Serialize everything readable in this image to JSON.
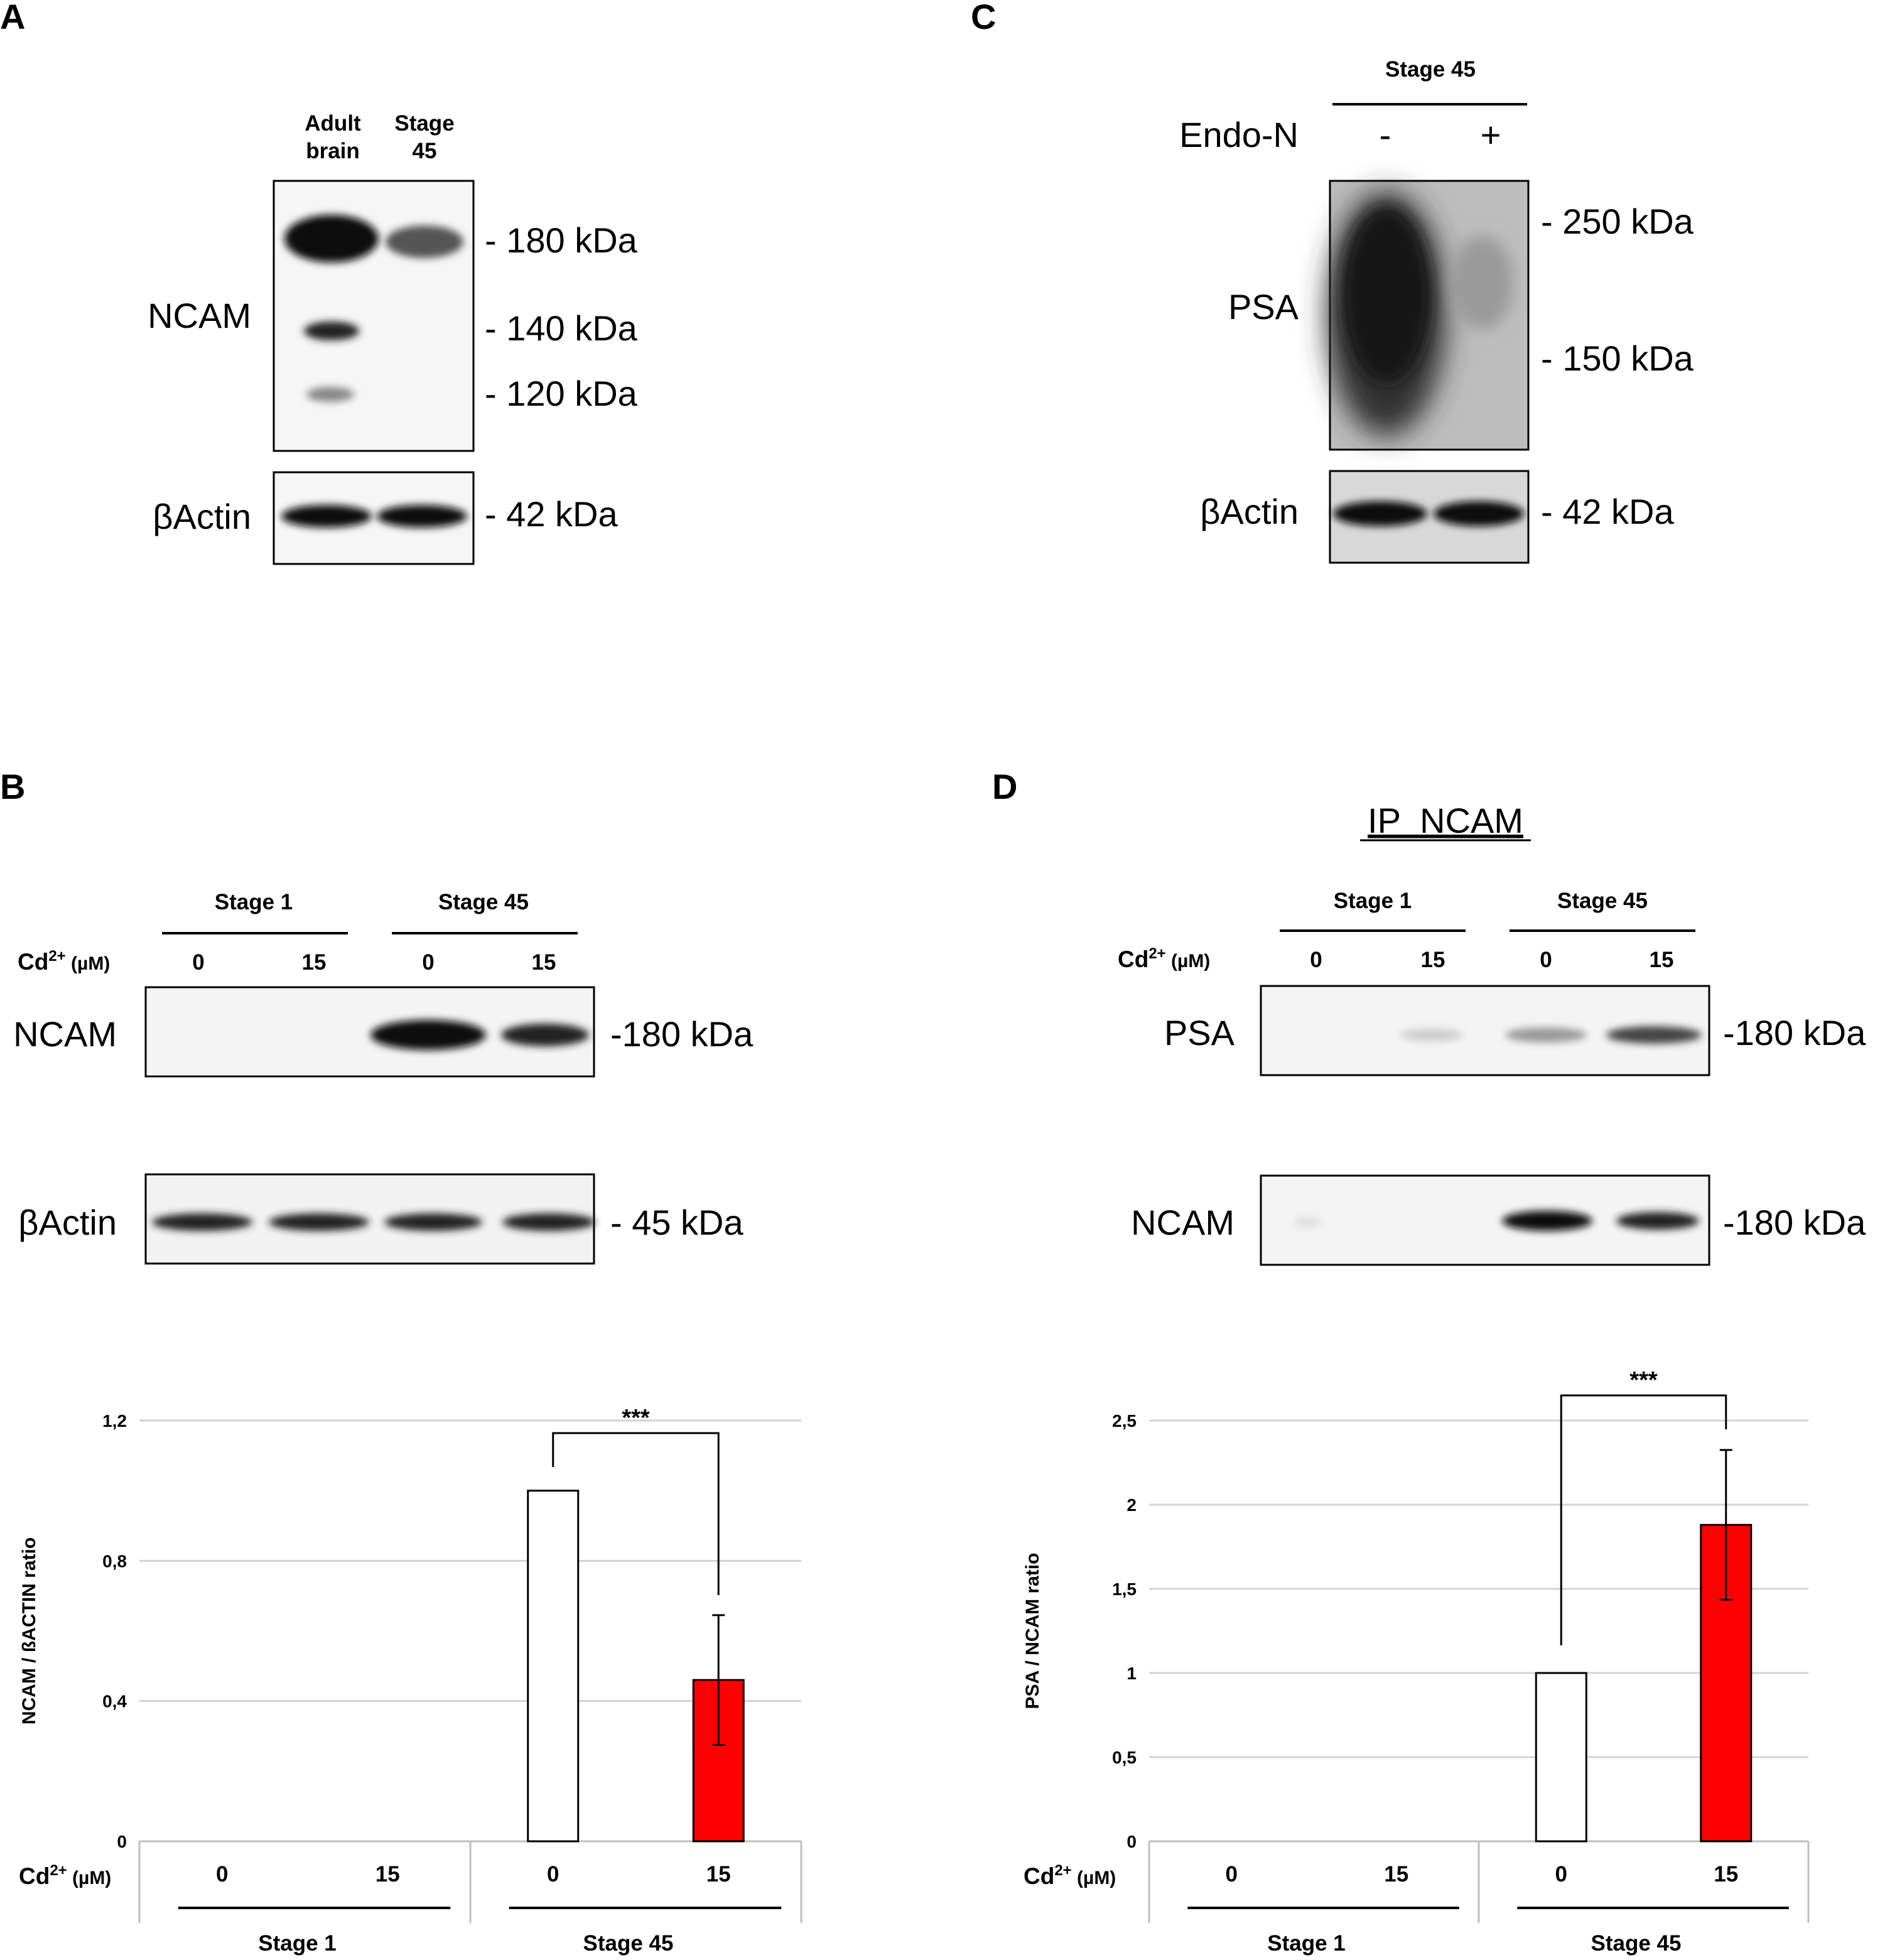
{
  "panels": {
    "A": {
      "letter": "A",
      "lanes": [
        {
          "line1": "Adult",
          "line2": "brain"
        },
        {
          "line1": "Stage",
          "line2": "45"
        }
      ],
      "rows": {
        "ncam": "NCAM",
        "actin": "βActin"
      },
      "markers": [
        "- 180 kDa",
        "- 140 kDa",
        "- 120 kDa"
      ],
      "actin_marker": "- 42 kDa"
    },
    "C": {
      "letter": "C",
      "group": "Stage 45",
      "treatment": "Endo-N",
      "signs": [
        "-",
        "+"
      ],
      "rows": {
        "psa": "PSA",
        "actin": "βActin"
      },
      "markers": [
        "- 250 kDa",
        "- 150 kDa"
      ],
      "actin_marker": "- 42 kDa"
    },
    "B": {
      "letter": "B",
      "groups": [
        "Stage 1",
        "Stage 45"
      ],
      "cd_main": "Cd",
      "cd_sup": "2+",
      "cd_unit": " (µM)",
      "doses": [
        "0",
        "15",
        "0",
        "15"
      ],
      "rows": {
        "ncam": "NCAM",
        "actin": "βActin"
      },
      "ncam_marker": "-180 kDa",
      "actin_marker": "- 45 kDa"
    },
    "D": {
      "letter": "D",
      "title": "IP  NCAM",
      "groups": [
        "Stage 1",
        "Stage 45"
      ],
      "cd_main": "Cd",
      "cd_sup": "2+",
      "cd_unit": " (µM)",
      "doses": [
        "0",
        "15",
        "0",
        "15"
      ],
      "rows": {
        "psa": "PSA",
        "ncam": "NCAM"
      },
      "psa_marker": "-180 kDa",
      "ncam_marker": "-180 kDa"
    }
  },
  "chart_data": [
    {
      "type": "bar",
      "panel": "B",
      "ylabel": "NCAM / ßACTIN ratio",
      "ylim": [
        0,
        1.2
      ],
      "yticks": [
        "0",
        "0,4",
        "0,8",
        "1,2"
      ],
      "ytick_values": [
        0,
        0.4,
        0.8,
        1.2
      ],
      "grid": true,
      "categories": [
        "0",
        "15",
        "0",
        "15"
      ],
      "groups": [
        "Stage 1",
        "Stage 45"
      ],
      "x_prefix_main": "Cd",
      "x_prefix_sup": "2+",
      "x_prefix_unit": " (µM)",
      "values": [
        0,
        0,
        1.0,
        0.46
      ],
      "errors": [
        null,
        null,
        null,
        0.185
      ],
      "colors": [
        "#ffffff",
        "#ffffff",
        "#ffffff",
        "#ff0000"
      ],
      "significance": {
        "from": 2,
        "to": 3,
        "label": "***"
      }
    },
    {
      "type": "bar",
      "panel": "D",
      "ylabel": "PSA / NCAM ratio",
      "ylim": [
        0,
        2.5
      ],
      "yticks": [
        "0",
        "0,5",
        "1",
        "1,5",
        "2",
        "2,5"
      ],
      "ytick_values": [
        0,
        0.5,
        1.0,
        1.5,
        2.0,
        2.5
      ],
      "grid": true,
      "categories": [
        "0",
        "15",
        "0",
        "15"
      ],
      "groups": [
        "Stage 1",
        "Stage 45"
      ],
      "x_prefix_main": "Cd",
      "x_prefix_sup": "2+",
      "x_prefix_unit": " (µM)",
      "values": [
        0,
        0,
        1.0,
        1.88
      ],
      "errors": [
        null,
        null,
        null,
        0.445
      ],
      "colors": [
        "#ffffff",
        "#ffffff",
        "#ffffff",
        "#ff0000"
      ],
      "significance": {
        "from": 2,
        "to": 3,
        "label": "***"
      }
    }
  ]
}
